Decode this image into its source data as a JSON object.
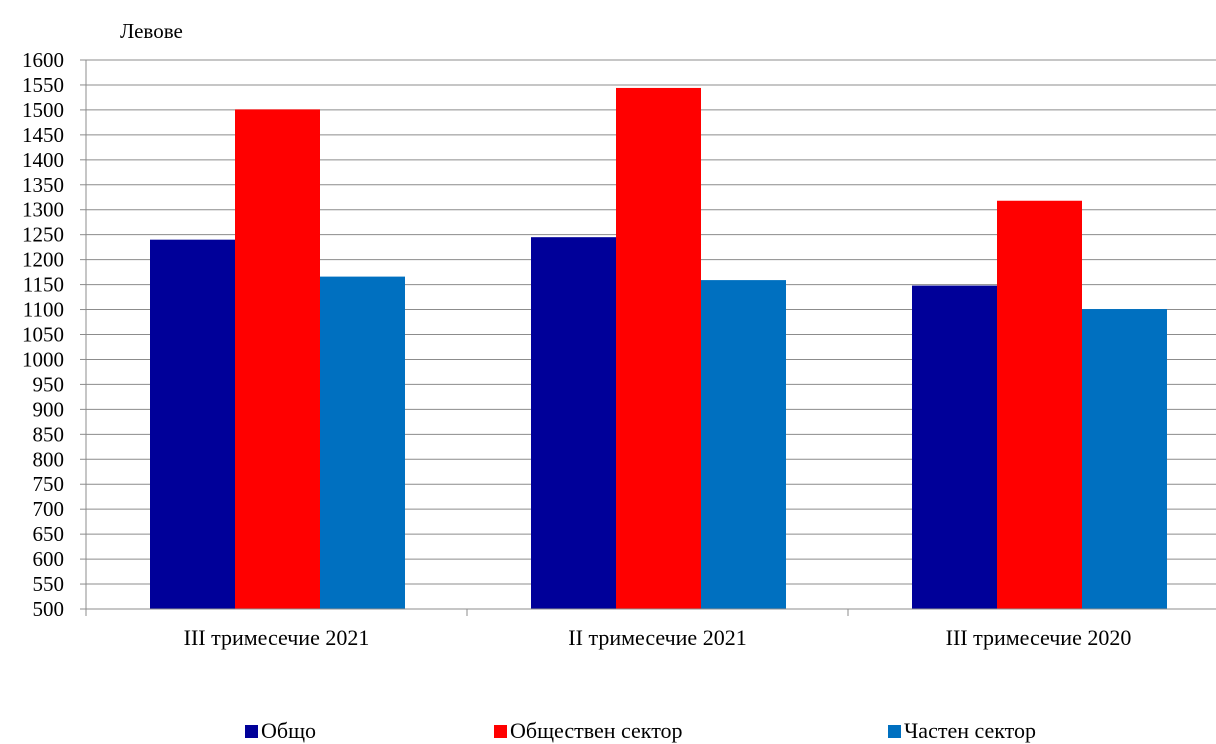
{
  "chart_data": {
    "type": "bar",
    "title": "",
    "ylabel": "Левове",
    "xlabel": "",
    "ylim": [
      500,
      1600
    ],
    "ytick_step": 50,
    "grid": "horizontal",
    "legend_position": "bottom",
    "categories": [
      "III тримесечие 2021",
      "II тримесечие 2021",
      "III тримесечие 2020"
    ],
    "series": [
      {
        "name": "Общо",
        "color": "#000099",
        "values": [
          1240,
          1245,
          1148
        ]
      },
      {
        "name": "Обществен сектор",
        "color": "#ff0000",
        "values": [
          1501,
          1544,
          1318
        ]
      },
      {
        "name": "Частен сектор",
        "color": "#0070c0",
        "values": [
          1166,
          1159,
          1101
        ]
      }
    ]
  }
}
